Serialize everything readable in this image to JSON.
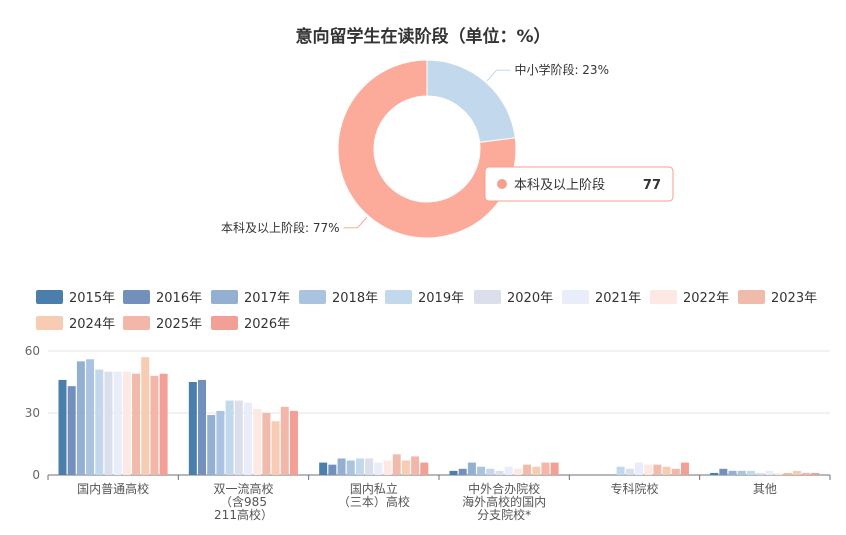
{
  "title": "意向留学生在读阶段（单位：%）",
  "chart_data": [
    {
      "type": "pie",
      "variant": "donut",
      "slices": [
        {
          "name": "中小学阶段",
          "value": 23,
          "label": "中小学阶段: 23%",
          "color": "#c2d8ec"
        },
        {
          "name": "本科及以上阶段",
          "value": 77,
          "label": "本科及以上阶段: 77%",
          "color": "#fcab9b"
        }
      ],
      "tooltip": {
        "name": "本科及以上阶段",
        "value": "77",
        "color": "#f4a08e"
      }
    },
    {
      "type": "bar",
      "categories": [
        "国内普通高校",
        "双一流高校（含985 211高校）",
        "国内私立（三本）高校",
        "中外合办院校 海外高校的国内分支院校*",
        "专科院校",
        "其他"
      ],
      "category_lines": [
        [
          "国内普通高校"
        ],
        [
          "双一流高校",
          "（含985",
          "211高校）"
        ],
        [
          "国内私立",
          "（三本）高校"
        ],
        [
          "中外合办院校",
          "海外高校的国内",
          "分支院校*"
        ],
        [
          "专科院校"
        ],
        [
          "其他"
        ]
      ],
      "ylim": [
        0,
        60
      ],
      "yticks": [
        0,
        30,
        60
      ],
      "grid": true,
      "legend_position": "top-left",
      "series": [
        {
          "name": "2015年",
          "color": "#4a7fab",
          "values": [
            46,
            45,
            6,
            2,
            0,
            1
          ]
        },
        {
          "name": "2016年",
          "color": "#7390bd",
          "values": [
            43,
            46,
            5,
            3,
            0,
            3
          ]
        },
        {
          "name": "2017年",
          "color": "#93afd2",
          "values": [
            55,
            29,
            8,
            6,
            0,
            2
          ]
        },
        {
          "name": "2018年",
          "color": "#a9c3e0",
          "values": [
            56,
            31,
            7,
            4,
            0,
            2
          ]
        },
        {
          "name": "2019年",
          "color": "#c2d8ec",
          "values": [
            51,
            36,
            8,
            3,
            4,
            2
          ]
        },
        {
          "name": "2020年",
          "color": "#dbdfeb",
          "values": [
            50,
            36,
            8,
            2,
            3,
            1
          ]
        },
        {
          "name": "2021年",
          "color": "#e9ecf9",
          "values": [
            50,
            35,
            6,
            4,
            6,
            2
          ]
        },
        {
          "name": "2022年",
          "color": "#fde8e3",
          "values": [
            50,
            32,
            7,
            3,
            5,
            1
          ]
        },
        {
          "name": "2023年",
          "color": "#f1bbab",
          "values": [
            49,
            30,
            10,
            5,
            5,
            1
          ]
        },
        {
          "name": "2024年",
          "color": "#f8cbb3",
          "values": [
            57,
            26,
            7,
            4,
            4,
            2
          ]
        },
        {
          "name": "2025年",
          "color": "#f4b6a8",
          "values": [
            48,
            33,
            9,
            6,
            3,
            1
          ]
        },
        {
          "name": "2026年",
          "color": "#f2a096",
          "values": [
            49,
            31,
            6,
            6,
            6,
            1
          ]
        }
      ]
    }
  ]
}
